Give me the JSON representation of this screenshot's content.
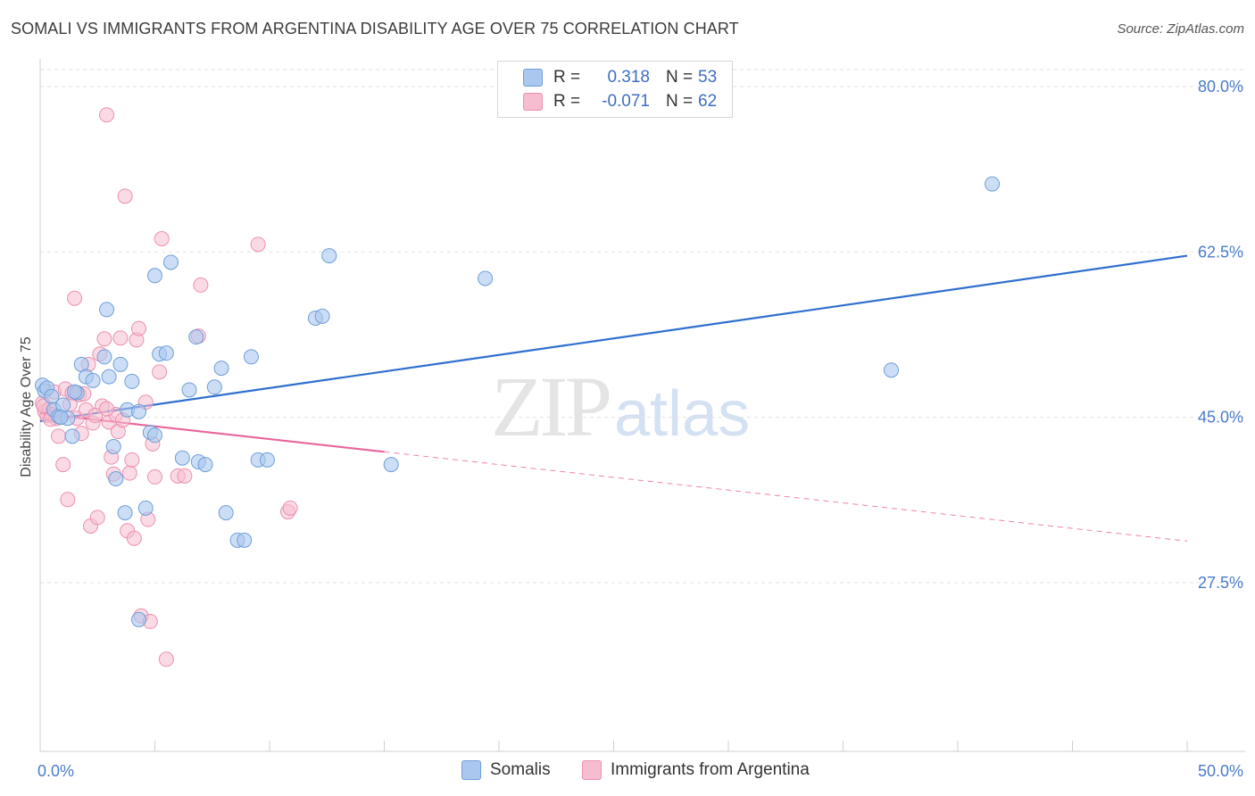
{
  "title": "SOMALI VS IMMIGRANTS FROM ARGENTINA DISABILITY AGE OVER 75 CORRELATION CHART",
  "source": "Source: ZipAtlas.com",
  "watermark": {
    "zip": "ZIP",
    "atlas": "atlas"
  },
  "legend": {
    "r_label": "R =",
    "n_label": "N =",
    "rows": [
      {
        "r": "0.318",
        "n": "53"
      },
      {
        "r": "-0.071",
        "n": "62"
      }
    ]
  },
  "colors": {
    "somali_fill": "#aac8ef",
    "somali_stroke": "#6f9ed9",
    "somali_line": "#2f6fcf",
    "arg_fill": "#f6bdd0",
    "arg_stroke": "#eb8fb0",
    "arg_line": "#e8649a"
  },
  "chart_data": {
    "type": "scatter",
    "title": "SOMALI VS IMMIGRANTS FROM ARGENTINA DISABILITY AGE OVER 75 CORRELATION CHART",
    "xlabel": "",
    "ylabel": "Disability Age Over 75",
    "xlim": [
      0,
      50
    ],
    "ylim": [
      10,
      82.5
    ],
    "x_tick_labels": [
      "0.0%",
      "50.0%"
    ],
    "y_ticks": [
      27.5,
      45.0,
      62.5,
      80.0
    ],
    "y_tick_labels": [
      "27.5%",
      "45.0%",
      "62.5%",
      "80.0%"
    ],
    "grid": true,
    "series": [
      {
        "name": "Somalis",
        "trend": {
          "x": [
            0,
            50
          ],
          "y": [
            44.6,
            62.1
          ],
          "solid_to": 50
        },
        "points": [
          [
            0.1,
            48.4
          ],
          [
            0.2,
            47.8
          ],
          [
            0.3,
            48.1
          ],
          [
            0.5,
            47.2
          ],
          [
            0.6,
            45.8
          ],
          [
            0.8,
            45.1
          ],
          [
            1.0,
            46.3
          ],
          [
            1.2,
            44.9
          ],
          [
            1.4,
            43.0
          ],
          [
            1.6,
            47.6
          ],
          [
            1.8,
            50.6
          ],
          [
            2.0,
            49.3
          ],
          [
            2.3,
            48.9
          ],
          [
            2.8,
            51.4
          ],
          [
            2.9,
            56.4
          ],
          [
            3.0,
            49.3
          ],
          [
            3.2,
            41.9
          ],
          [
            3.3,
            38.5
          ],
          [
            3.5,
            50.6
          ],
          [
            3.7,
            34.9
          ],
          [
            3.8,
            45.8
          ],
          [
            4.0,
            48.8
          ],
          [
            4.3,
            45.6
          ],
          [
            4.3,
            23.6
          ],
          [
            4.6,
            35.4
          ],
          [
            4.8,
            43.4
          ],
          [
            5.0,
            43.1
          ],
          [
            5.0,
            60.0
          ],
          [
            5.2,
            51.7
          ],
          [
            5.5,
            51.8
          ],
          [
            5.7,
            61.4
          ],
          [
            6.2,
            40.7
          ],
          [
            6.5,
            47.9
          ],
          [
            6.8,
            53.5
          ],
          [
            6.9,
            40.3
          ],
          [
            7.2,
            40.0
          ],
          [
            7.6,
            48.2
          ],
          [
            7.9,
            50.2
          ],
          [
            8.1,
            34.9
          ],
          [
            8.6,
            32.0
          ],
          [
            8.9,
            32.0
          ],
          [
            9.2,
            51.4
          ],
          [
            9.5,
            40.5
          ],
          [
            9.9,
            40.5
          ],
          [
            12.0,
            55.5
          ],
          [
            12.3,
            55.7
          ],
          [
            12.6,
            62.1
          ],
          [
            15.3,
            40.0
          ],
          [
            19.4,
            59.7
          ],
          [
            37.1,
            50.0
          ],
          [
            41.5,
            69.7
          ],
          [
            0.9,
            45.0
          ],
          [
            1.5,
            47.7
          ]
        ]
      },
      {
        "name": "Immigrants from Argentina",
        "trend": {
          "x": [
            0,
            50
          ],
          "y": [
            45.4,
            31.9
          ],
          "solid_to": 15
        },
        "points": [
          [
            0.1,
            46.5
          ],
          [
            0.2,
            45.6
          ],
          [
            0.3,
            45.2
          ],
          [
            0.4,
            45.9
          ],
          [
            0.5,
            45.3
          ],
          [
            0.6,
            47.7
          ],
          [
            0.8,
            43.0
          ],
          [
            0.9,
            45.0
          ],
          [
            1.0,
            40.0
          ],
          [
            1.1,
            48.0
          ],
          [
            1.2,
            36.3
          ],
          [
            1.3,
            46.4
          ],
          [
            1.5,
            57.6
          ],
          [
            1.6,
            44.9
          ],
          [
            1.7,
            47.4
          ],
          [
            1.9,
            47.5
          ],
          [
            2.0,
            45.8
          ],
          [
            2.1,
            50.6
          ],
          [
            2.2,
            33.5
          ],
          [
            2.3,
            44.4
          ],
          [
            2.5,
            34.4
          ],
          [
            2.6,
            51.7
          ],
          [
            2.7,
            46.2
          ],
          [
            2.8,
            53.3
          ],
          [
            2.9,
            77.0
          ],
          [
            3.0,
            44.5
          ],
          [
            3.1,
            40.8
          ],
          [
            3.2,
            39.0
          ],
          [
            3.4,
            43.5
          ],
          [
            3.5,
            53.4
          ],
          [
            3.7,
            68.4
          ],
          [
            3.8,
            33.0
          ],
          [
            3.9,
            39.1
          ],
          [
            4.0,
            40.5
          ],
          [
            4.1,
            32.2
          ],
          [
            4.2,
            53.2
          ],
          [
            4.3,
            54.4
          ],
          [
            4.4,
            24.0
          ],
          [
            4.6,
            46.6
          ],
          [
            4.7,
            34.2
          ],
          [
            4.8,
            23.4
          ],
          [
            4.9,
            42.2
          ],
          [
            5.0,
            38.7
          ],
          [
            5.2,
            49.8
          ],
          [
            5.3,
            63.9
          ],
          [
            5.5,
            19.4
          ],
          [
            6.0,
            38.8
          ],
          [
            6.3,
            38.8
          ],
          [
            6.9,
            53.6
          ],
          [
            7.0,
            59.0
          ],
          [
            9.5,
            63.3
          ],
          [
            10.8,
            35.0
          ],
          [
            10.9,
            35.4
          ],
          [
            0.7,
            44.9
          ],
          [
            1.8,
            43.3
          ],
          [
            2.4,
            45.2
          ],
          [
            3.3,
            45.3
          ],
          [
            1.4,
            47.6
          ],
          [
            0.15,
            46.2
          ],
          [
            2.9,
            45.9
          ],
          [
            3.6,
            44.7
          ],
          [
            0.45,
            44.8
          ]
        ]
      }
    ]
  },
  "bottom_legend": [
    "Somalis",
    "Immigrants from Argentina"
  ]
}
